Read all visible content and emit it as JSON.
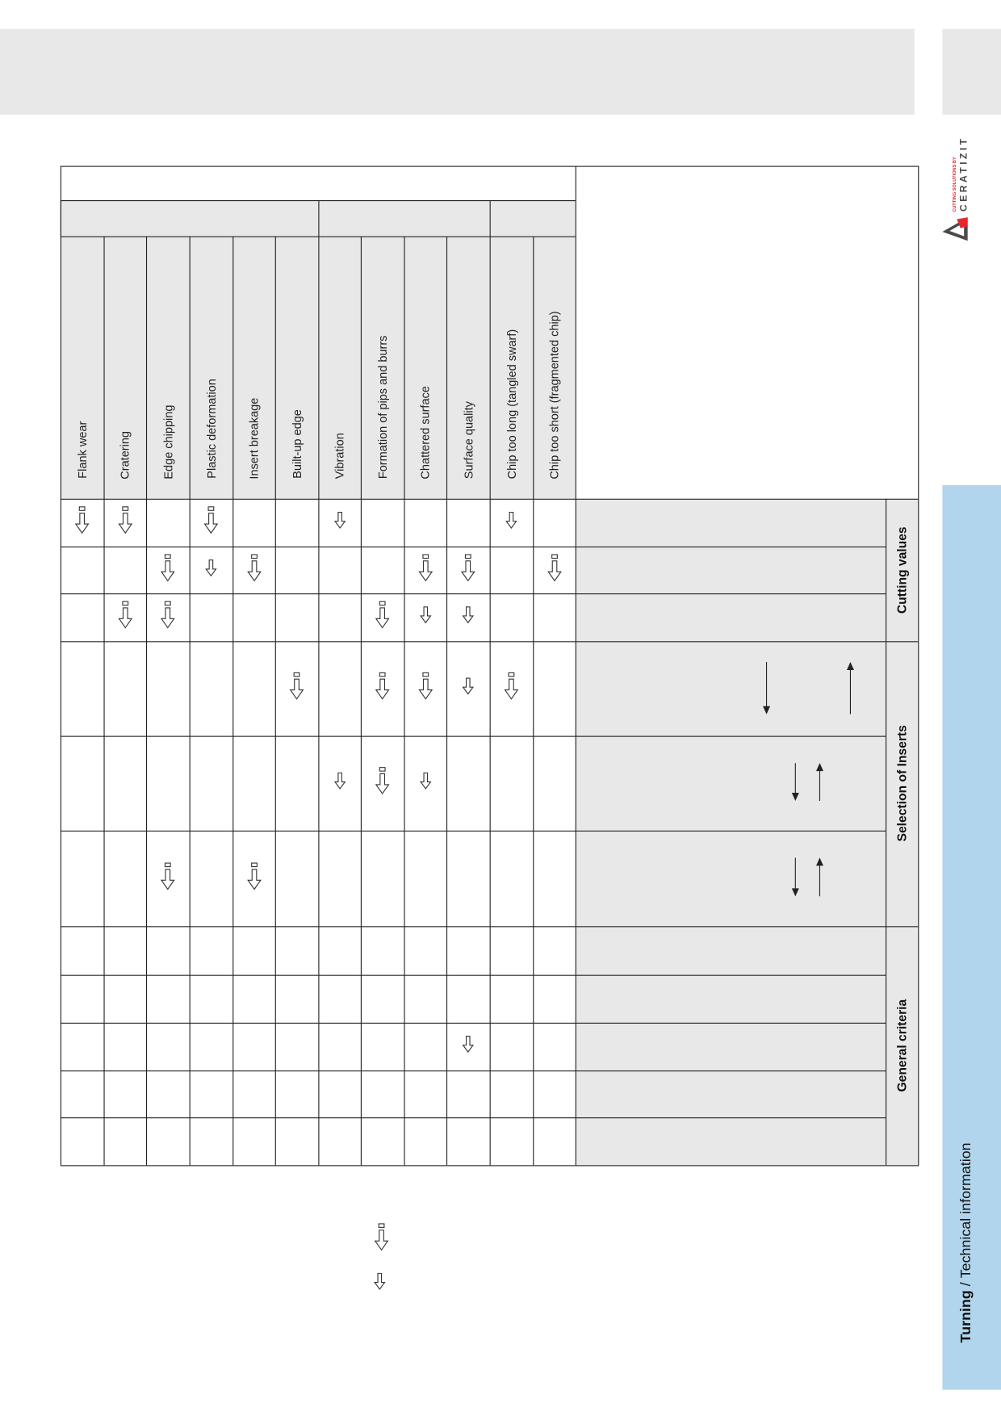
{
  "header": {
    "band_color": "#e8e8e8"
  },
  "logo": {
    "tagline": "CUTTING SOLUTIONS BY",
    "brand": "CERATIZIT",
    "accent_color": "#e8262c",
    "dark_color": "#4a4a4a"
  },
  "side_tab": {
    "section": "Turning",
    "separator": " / ",
    "subtitle": "Technical information",
    "color": "#b0d5ec"
  },
  "table": {
    "columns": [
      "Flank wear",
      "Cratering",
      "Edge chipping",
      "Plastic deformation",
      "Insert breakage",
      "Built-up edge",
      "Vibration",
      "Formation of pips and burrs",
      "Chattered surface",
      "Surface quality",
      "Chip too long (tangled swarf)",
      "Chip too short (fragmented chip)"
    ],
    "groups": [
      "Cutting values",
      "Selection of Inserts",
      "General criteria"
    ],
    "legend_icons": [
      "hollow-arrow-down-large",
      "hollow-arrow-down-small"
    ],
    "matrix": [
      [
        "L",
        "L",
        "",
        "L",
        "",
        "",
        "S",
        "",
        "",
        "",
        "S",
        ""
      ],
      [
        "",
        "",
        "L",
        "S",
        "L",
        "",
        "",
        "",
        "L",
        "L",
        "",
        "L"
      ],
      [
        "",
        "L",
        "L",
        "",
        "",
        "",
        "",
        "L",
        "S",
        "S",
        "",
        ""
      ],
      [
        "",
        "",
        "",
        "",
        "",
        "L",
        "",
        "L",
        "L",
        "S",
        "L",
        ""
      ],
      [
        "",
        "",
        "",
        "",
        "",
        "",
        "S",
        "L",
        "S",
        "",
        "",
        ""
      ],
      [
        "",
        "",
        "L",
        "",
        "L",
        "",
        "",
        "",
        "",
        "",
        "",
        ""
      ],
      [
        "",
        "",
        "",
        "",
        "",
        "",
        "",
        "",
        "",
        "",
        "",
        ""
      ],
      [
        "",
        "",
        "",
        "",
        "",
        "",
        "",
        "",
        "",
        "",
        "",
        ""
      ],
      [
        "",
        "",
        "",
        "",
        "",
        "",
        "",
        "",
        "",
        "S",
        "",
        ""
      ],
      [
        "",
        "",
        "",
        "",
        "",
        "",
        "",
        "",
        "",
        "",
        "",
        ""
      ],
      [
        "",
        "",
        "",
        "",
        "",
        "",
        "",
        "",
        "",
        "",
        "",
        ""
      ]
    ],
    "row_label_arrows": [
      [],
      [],
      [],
      [
        "down",
        "up"
      ],
      [
        "down",
        "up"
      ],
      [
        "down",
        "up"
      ],
      [],
      [],
      [],
      [],
      []
    ]
  }
}
